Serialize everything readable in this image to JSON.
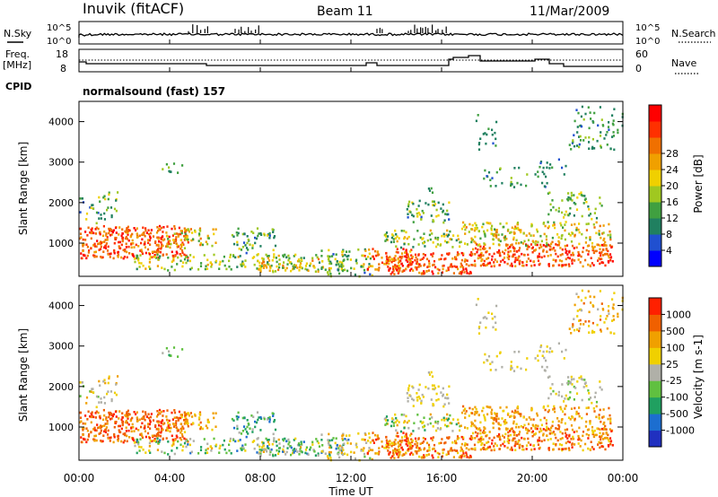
{
  "header": {
    "station": "Inuvik (fitACF)",
    "beam": "Beam 11",
    "date": "11/Mar/2009"
  },
  "noise_panel": {
    "left_label": "N.Sky",
    "right_label": "N.Search",
    "left_ticks": [
      "10^5",
      "10^0"
    ],
    "right_ticks": [
      "10^5",
      "10^0"
    ]
  },
  "freq_panel": {
    "left_label_line1": "Freq.",
    "left_label_line2": "[MHz]",
    "right_label": "Nave",
    "left_ticks": [
      "18",
      "8"
    ],
    "right_ticks": [
      "60",
      "0"
    ],
    "cpid_label": "CPID",
    "cpid_text": "normalsound (fast) 157"
  },
  "chart_data": [
    {
      "type": "heatmap",
      "title": "",
      "ylabel": "Slant Range [km]",
      "xlabel": "",
      "yticks": [
        "1000",
        "2000",
        "3000",
        "4000"
      ],
      "ylim": [
        180,
        4500
      ],
      "colorbar": {
        "label": "Power [dB]",
        "ticks": [
          "4",
          "8",
          "12",
          "16",
          "20",
          "24",
          "28"
        ],
        "colors": [
          "#0000ff",
          "#2050d0",
          "#208060",
          "#40a040",
          "#a0c820",
          "#f0d000",
          "#f0a000",
          "#f07000",
          "#ff3000",
          "#ff0000"
        ]
      }
    },
    {
      "type": "heatmap",
      "title": "",
      "ylabel": "Slant Range [km]",
      "xlabel": "Time UT",
      "yticks": [
        "1000",
        "2000",
        "3000",
        "4000"
      ],
      "ylim": [
        180,
        4500
      ],
      "xticks": [
        "00:00",
        "04:00",
        "08:00",
        "12:00",
        "16:00",
        "20:00",
        "00:00"
      ],
      "colorbar": {
        "label": "Velocity [m s-1]",
        "ticks": [
          "1000",
          "500",
          "100",
          "25",
          "-25",
          "-100",
          "-500",
          "-1000"
        ],
        "colors": [
          "#2030c0",
          "#1c6ed0",
          "#20a060",
          "#60c040",
          "#b0b0a8",
          "#f0d000",
          "#f0a000",
          "#f06000",
          "#ff2000"
        ]
      }
    }
  ]
}
